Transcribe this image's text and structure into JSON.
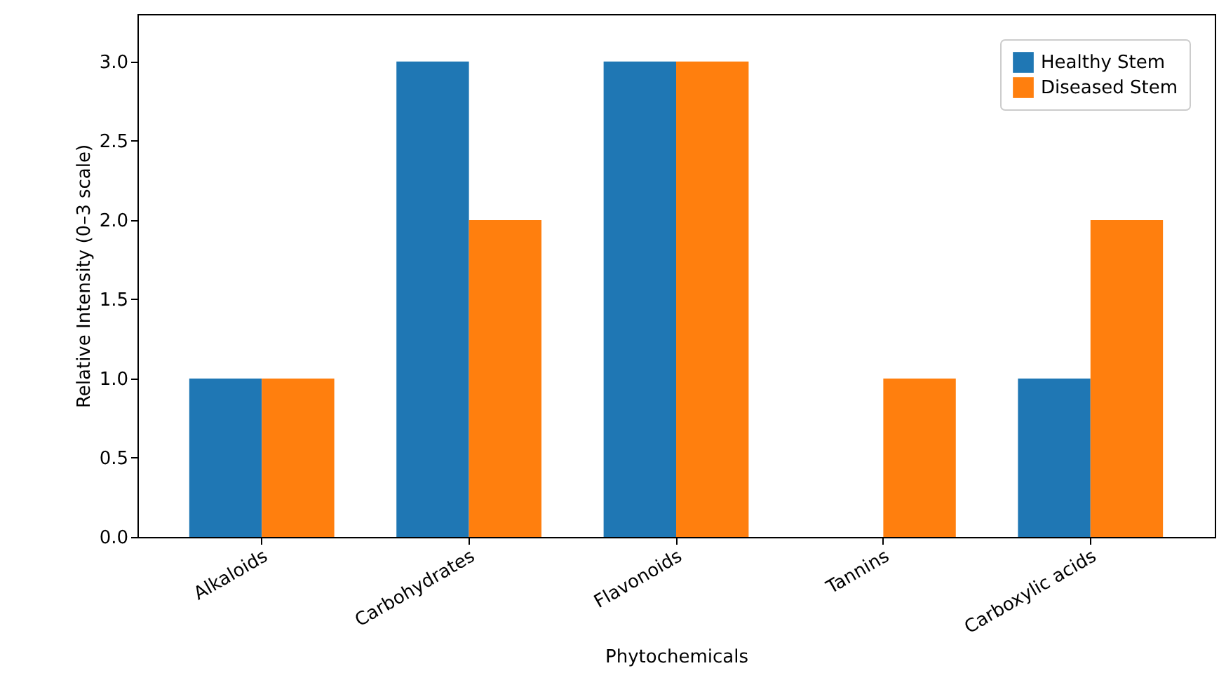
{
  "chart_data": {
    "type": "bar",
    "xlabel": "Phytochemicals",
    "ylabel": "Relative Intensity (0–3 scale)",
    "categories": [
      "Alkaloids",
      "Carbohydrates",
      "Flavonoids",
      "Tannins",
      "Carboxylic acids"
    ],
    "series": [
      {
        "name": "Healthy Stem",
        "color": "#1f77b4",
        "values": [
          1,
          3,
          3,
          0,
          1
        ]
      },
      {
        "name": "Diseased Stem",
        "color": "#ff7f0e",
        "values": [
          1,
          2,
          3,
          1,
          2
        ]
      }
    ],
    "ylim": [
      0,
      3.3
    ],
    "yticks": [
      {
        "value": 0,
        "label": "0.0"
      },
      0.5,
      {
        "value": 1,
        "label": "1.0"
      },
      1.5,
      {
        "value": 2,
        "label": "2.0"
      },
      2.5,
      {
        "value": 3,
        "label": "3.0"
      }
    ],
    "grid": false,
    "legend": "top right"
  }
}
